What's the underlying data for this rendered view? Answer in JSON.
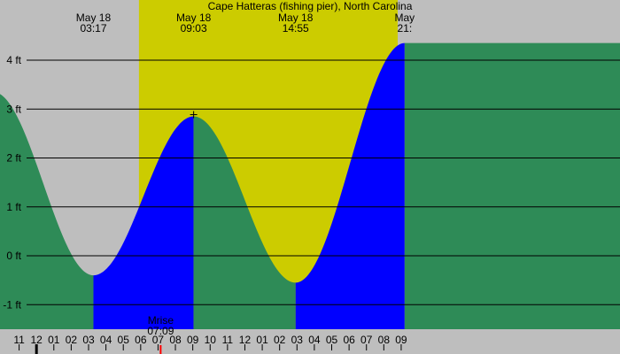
{
  "chart_data": {
    "type": "area",
    "title": "Cape Hatteras (fishing pier), North Carolina",
    "xlabel": "",
    "ylabel": "",
    "unit": "ft",
    "ylim": [
      -1.5,
      4.7
    ],
    "y_ticks": [
      {
        "value": 4,
        "label": "4 ft"
      },
      {
        "value": 3,
        "label": "3 ft"
      },
      {
        "value": 2,
        "label": "2 ft"
      },
      {
        "value": 1,
        "label": "1 ft"
      },
      {
        "value": 0,
        "label": "0 ft"
      },
      {
        "value": -1,
        "label": "-1 ft"
      }
    ],
    "x_range_hours": [
      -2.1,
      33.6
    ],
    "hour_ticks": [
      {
        "hour": -1,
        "label": "11"
      },
      {
        "hour": 0,
        "label": "12"
      },
      {
        "hour": 1,
        "label": "01"
      },
      {
        "hour": 2,
        "label": "02"
      },
      {
        "hour": 3,
        "label": "03"
      },
      {
        "hour": 4,
        "label": "04"
      },
      {
        "hour": 5,
        "label": "05"
      },
      {
        "hour": 6,
        "label": "06"
      },
      {
        "hour": 7,
        "label": "07"
      },
      {
        "hour": 8,
        "label": "08"
      },
      {
        "hour": 9,
        "label": "09"
      },
      {
        "hour": 10,
        "label": "10"
      },
      {
        "hour": 11,
        "label": "11"
      },
      {
        "hour": 12,
        "label": "12"
      },
      {
        "hour": 13,
        "label": "01"
      },
      {
        "hour": 14,
        "label": "02"
      },
      {
        "hour": 15,
        "label": "03"
      },
      {
        "hour": 16,
        "label": "04"
      },
      {
        "hour": 17,
        "label": "05"
      },
      {
        "hour": 18,
        "label": "06"
      },
      {
        "hour": 19,
        "label": "07"
      },
      {
        "hour": 20,
        "label": "08"
      },
      {
        "hour": 21,
        "label": "09"
      }
    ],
    "extrema": [
      {
        "date": "May 18",
        "time": "03:17",
        "hour": 3.28,
        "height": -0.4,
        "kind": "low"
      },
      {
        "date": "May 18",
        "time": "09:03",
        "hour": 9.05,
        "height": 2.85,
        "kind": "high"
      },
      {
        "date": "May 18",
        "time": "14:55",
        "hour": 14.92,
        "height": -0.55,
        "kind": "low"
      },
      {
        "date": "May",
        "time": "21:",
        "hour": 21.2,
        "height": 4.35,
        "kind": "high"
      }
    ],
    "series": [
      {
        "kind": "falling",
        "color": "#2e8b57"
      },
      {
        "kind": "rising",
        "color": "#0000ff"
      }
    ],
    "daylight": {
      "start_hour": 5.9,
      "end_hour": 20.8,
      "color": "#cccc00",
      "night_color": "#bebebe"
    },
    "moonrise": {
      "label": "Mrise",
      "time": "07:09",
      "hour": 7.15,
      "color": "#ff0000"
    },
    "grid": true
  }
}
